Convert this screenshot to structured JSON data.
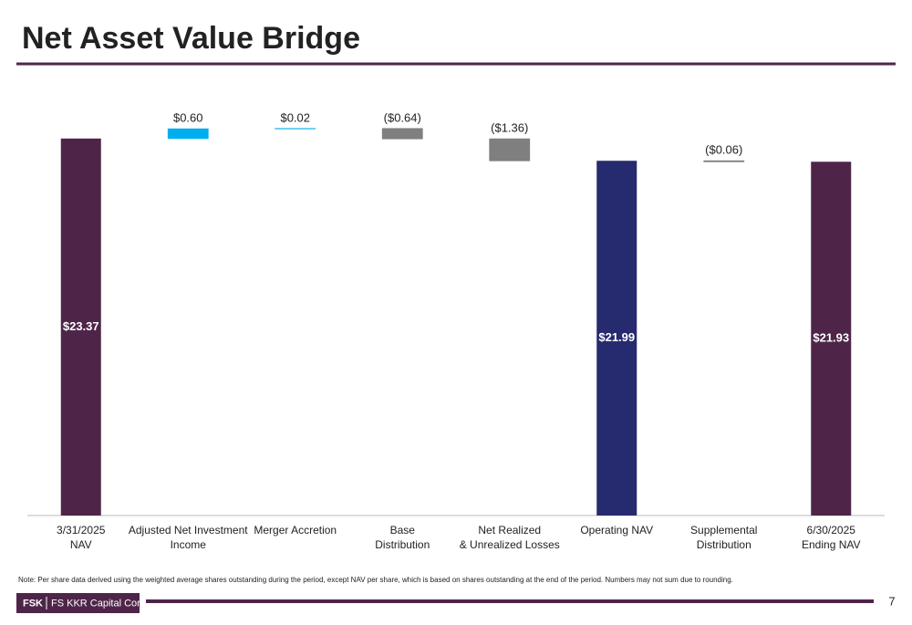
{
  "header": {
    "title": "Net Asset Value Bridge"
  },
  "chart_data": {
    "type": "waterfall",
    "categories": [
      [
        "3/31/2025",
        "NAV"
      ],
      [
        "Adjusted Net Investment",
        "Income"
      ],
      [
        "Merger Accretion"
      ],
      [
        "Base",
        "Distribution"
      ],
      [
        "Net Realized",
        "& Unrealized Losses"
      ],
      [
        "Operating NAV"
      ],
      [
        "Supplemental",
        "Distribution"
      ],
      [
        "6/30/2025",
        "Ending NAV"
      ]
    ],
    "measure": [
      "absolute",
      "relative",
      "relative",
      "relative",
      "relative",
      "absolute",
      "relative",
      "absolute"
    ],
    "values": [
      23.37,
      0.6,
      0.02,
      -0.64,
      -1.36,
      21.99,
      -0.06,
      21.93
    ],
    "value_labels": [
      "$23.37",
      "$0.60",
      "$0.02",
      "($0.64)",
      "($1.36)",
      "$21.99",
      "($0.06)",
      "$21.93"
    ],
    "colors": [
      "#4e2549",
      "#00aeef",
      "#00aeef",
      "#7f7f7f",
      "#7f7f7f",
      "#262a6e",
      "#7f7f7f",
      "#4e2549"
    ],
    "ylim": [
      0,
      25
    ]
  },
  "footer": {
    "note": "Note: Per share data derived using the weighted average shares outstanding during the period, except NAV per share, which is based on shares outstanding at the end of the period. Numbers may not sum due to rounding.",
    "logo_bold": "FSK",
    "logo_text": "FS KKR Capital Corp.",
    "page": "7"
  }
}
